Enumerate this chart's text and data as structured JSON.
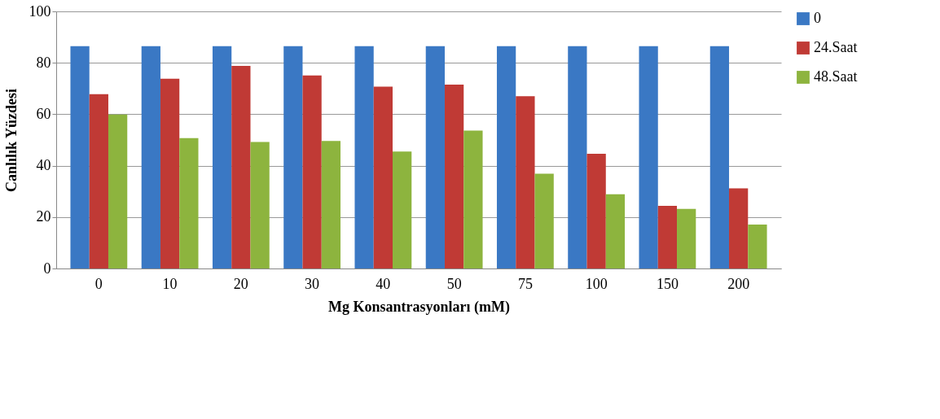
{
  "chart_data": {
    "type": "bar",
    "xlabel": "Mg Konsantrasyonları (mM)",
    "ylabel": "Canlılık  Yüzdesi",
    "categories": [
      "0",
      "10",
      "20",
      "30",
      "40",
      "50",
      "75",
      "100",
      "150",
      "200"
    ],
    "series": [
      {
        "name": "0",
        "color": "#3a78c4",
        "values": [
          86.5,
          86.5,
          86.5,
          86.5,
          86.5,
          86.5,
          86.5,
          86.5,
          86.5,
          86.5
        ]
      },
      {
        "name": "24.Saat",
        "color": "#c03a35",
        "values": [
          67.8,
          73.8,
          78.8,
          75.1,
          70.7,
          71.5,
          67.0,
          44.6,
          24.4,
          31.2
        ]
      },
      {
        "name": "48.Saat",
        "color": "#8db43e",
        "values": [
          59.9,
          50.7,
          49.2,
          49.6,
          45.5,
          53.6,
          36.9,
          28.9,
          23.2,
          17.1
        ]
      }
    ],
    "ylim": [
      0,
      100
    ],
    "yticks": [
      0,
      20,
      40,
      60,
      80,
      100
    ],
    "grid": "y",
    "legend": "right"
  }
}
